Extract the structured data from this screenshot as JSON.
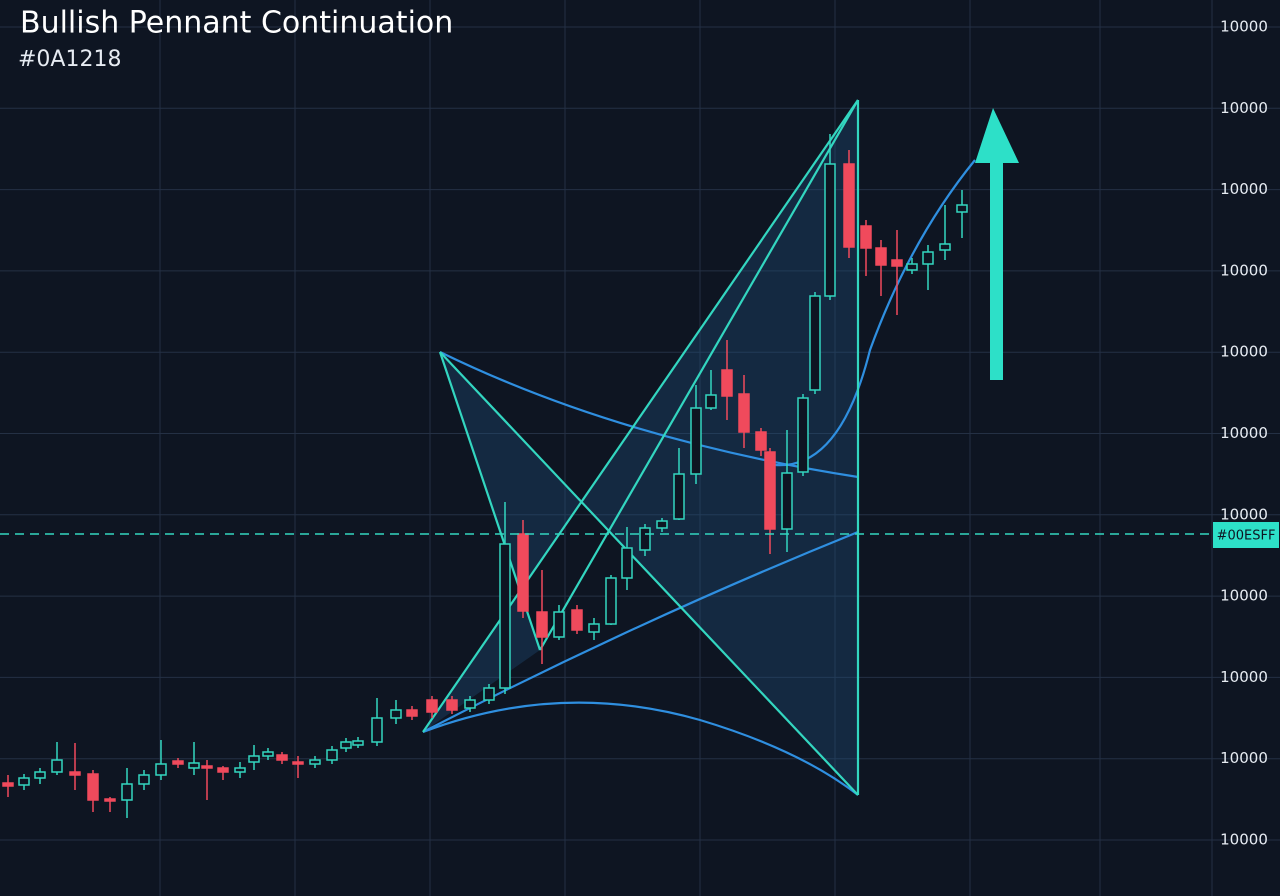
{
  "header": {
    "title": "Bullish Pennant Continuation",
    "subtitle": "#0A1218"
  },
  "axis_labels": [
    "10000",
    "10000",
    "10000",
    "10000",
    "10000",
    "10000",
    "10000",
    "10000",
    "10000",
    "10000",
    "10000"
  ],
  "price_tag": "#00ESFF"
}
